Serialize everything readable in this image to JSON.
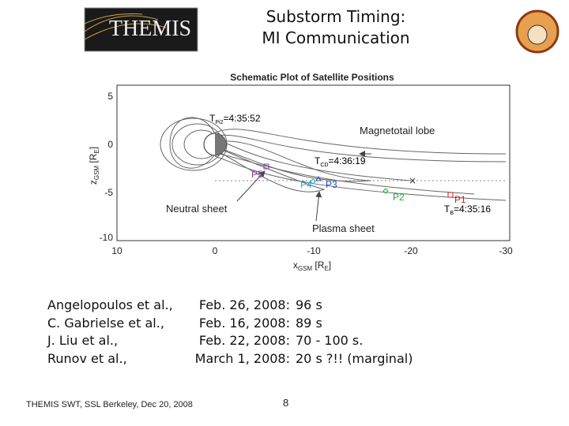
{
  "header": {
    "logo_text": "THEMIS",
    "title_lines": [
      "Substorm Timing:",
      "MI Communication"
    ]
  },
  "figure": {
    "title": "Schematic Plot of Satellite Positions",
    "x_label": {
      "main": "x",
      "sub": "GSM",
      "rest": " [R",
      "unit_sub": "E",
      "close": "]"
    },
    "y_label": {
      "main": "z",
      "sub": "GSM",
      "rest": " [R",
      "unit_sub": "E",
      "close": "]"
    },
    "xticks": [
      "10",
      "0",
      "-10",
      "-20",
      "-30"
    ],
    "yticks": [
      "5",
      "0",
      "-5",
      "-10"
    ],
    "annotations": [
      "Magnetotail lobe",
      "Neutral sheet",
      "Plasma sheet"
    ],
    "timings": [
      {
        "main": "T",
        "sub": "Pi2",
        "rest": "=4:35:52"
      },
      {
        "main": "T",
        "sub": "CD",
        "rest": "=4:36:19"
      },
      {
        "main": "T",
        "sub": "B",
        "rest": "=4:35:16"
      }
    ],
    "probes": [
      "P5",
      "P4",
      "P3",
      "P2",
      "P1"
    ]
  },
  "references": [
    [
      "Angelopoulos et al.,",
      "Feb. 26, 2008:",
      "96 s"
    ],
    [
      "C. Gabrielse et al.,",
      "Feb. 16, 2008:",
      "89 s"
    ],
    [
      "J. Liu et al.,",
      "Feb. 22, 2008:",
      "70 - 100 s."
    ],
    [
      "Runov et al.,",
      "March 1, 2008:",
      "20 s ?!! (marginal)"
    ]
  ],
  "footer": {
    "credit": "THEMIS SWT, SSL Berkeley, Dec 20, 2008",
    "page": "8"
  }
}
